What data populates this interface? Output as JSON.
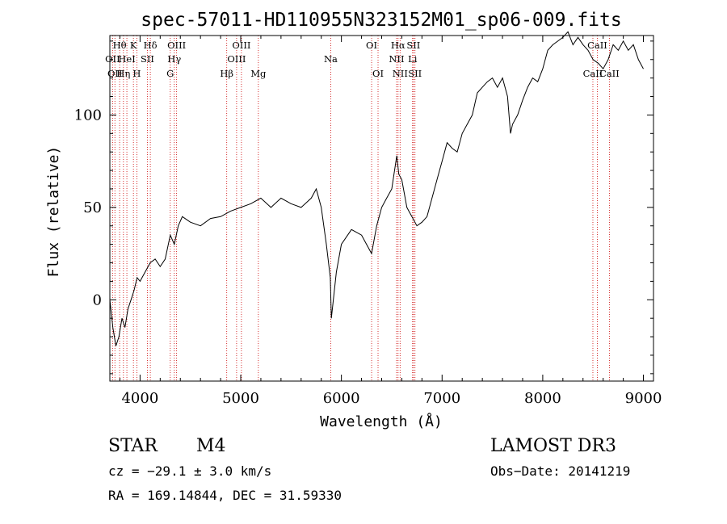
{
  "chart_data": {
    "type": "line",
    "title": "spec-57011-HD110955N323152M01_sp06-009.fits",
    "xlabel": "Wavelength (Å)",
    "ylabel": "Flux (relative)",
    "xlim": [
      3700,
      9100
    ],
    "ylim": [
      -44,
      143
    ],
    "xticks": [
      4000,
      5000,
      6000,
      7000,
      8000,
      9000
    ],
    "xtick_labels": [
      "4000",
      "5000",
      "6000",
      "7000",
      "8000",
      "9000"
    ],
    "yticks": [
      0,
      50,
      100
    ],
    "ytick_labels": [
      "0",
      "50",
      "100"
    ],
    "grid": false,
    "series": [
      {
        "name": "spectrum",
        "color": "#000000",
        "x": [
          3700,
          3730,
          3760,
          3790,
          3820,
          3850,
          3880,
          3910,
          3940,
          3970,
          4000,
          4050,
          4100,
          4150,
          4200,
          4250,
          4300,
          4340,
          4380,
          4420,
          4500,
          4600,
          4700,
          4800,
          4900,
          5000,
          5100,
          5200,
          5300,
          5400,
          5500,
          5600,
          5700,
          5750,
          5800,
          5850,
          5890,
          5900,
          5950,
          6000,
          6100,
          6200,
          6300,
          6350,
          6400,
          6450,
          6500,
          6550,
          6570,
          6600,
          6650,
          6700,
          6750,
          6800,
          6850,
          6900,
          6950,
          7000,
          7050,
          7100,
          7150,
          7200,
          7250,
          7300,
          7350,
          7400,
          7450,
          7500,
          7550,
          7600,
          7650,
          7680,
          7700,
          7750,
          7800,
          7850,
          7900,
          7950,
          8000,
          8050,
          8100,
          8150,
          8200,
          8250,
          8300,
          8350,
          8400,
          8450,
          8500,
          8550,
          8600,
          8650,
          8700,
          8750,
          8800,
          8850,
          8900,
          8950,
          9000
        ],
        "values": [
          0,
          -15,
          -25,
          -20,
          -10,
          -15,
          -5,
          0,
          5,
          12,
          10,
          15,
          20,
          22,
          18,
          22,
          35,
          30,
          40,
          45,
          42,
          40,
          44,
          45,
          48,
          50,
          52,
          55,
          50,
          55,
          52,
          50,
          55,
          60,
          50,
          30,
          12,
          -10,
          15,
          30,
          38,
          35,
          25,
          40,
          50,
          55,
          60,
          78,
          68,
          65,
          50,
          45,
          40,
          42,
          45,
          55,
          65,
          75,
          85,
          82,
          80,
          90,
          95,
          100,
          112,
          115,
          118,
          120,
          115,
          120,
          110,
          90,
          95,
          100,
          108,
          115,
          120,
          118,
          125,
          135,
          138,
          140,
          142,
          145,
          138,
          142,
          138,
          135,
          130,
          128,
          125,
          130,
          138,
          135,
          140,
          135,
          138,
          130,
          125
        ]
      }
    ],
    "line_markers": [
      {
        "wavelength": 3727,
        "label": "OII",
        "row": 2
      },
      {
        "wavelength": 3750,
        "label": "OII",
        "row": 3
      },
      {
        "wavelength": 3797,
        "label": "Hθ",
        "row": 1
      },
      {
        "wavelength": 3835,
        "label": "Hη",
        "row": 3
      },
      {
        "wavelength": 3869,
        "label": "HeI",
        "row": 2
      },
      {
        "wavelength": 3934,
        "label": "K",
        "row": 1
      },
      {
        "wavelength": 3968,
        "label": "H",
        "row": 3
      },
      {
        "wavelength": 4073,
        "label": "SII",
        "row": 2
      },
      {
        "wavelength": 4102,
        "label": "Hδ",
        "row": 1
      },
      {
        "wavelength": 4300,
        "label": "G",
        "row": 3
      },
      {
        "wavelength": 4340,
        "label": "Hγ",
        "row": 2
      },
      {
        "wavelength": 4363,
        "label": "OIII",
        "row": 1
      },
      {
        "wavelength": 4861,
        "label": "Hβ",
        "row": 3
      },
      {
        "wavelength": 4959,
        "label": "OIII",
        "row": 2
      },
      {
        "wavelength": 5007,
        "label": "OIII",
        "row": 1
      },
      {
        "wavelength": 5175,
        "label": "Mg",
        "row": 3
      },
      {
        "wavelength": 5894,
        "label": "Na",
        "row": 2
      },
      {
        "wavelength": 6300,
        "label": "OI",
        "row": 1
      },
      {
        "wavelength": 6364,
        "label": "OI",
        "row": 3
      },
      {
        "wavelength": 6548,
        "label": "NII",
        "row": 2
      },
      {
        "wavelength": 6563,
        "label": "Hα",
        "row": 1
      },
      {
        "wavelength": 6583,
        "label": "NII",
        "row": 3
      },
      {
        "wavelength": 6707,
        "label": "Li",
        "row": 2
      },
      {
        "wavelength": 6716,
        "label": "SII",
        "row": 1
      },
      {
        "wavelength": 6731,
        "label": "SII",
        "row": 3
      },
      {
        "wavelength": 8498,
        "label": "CaII",
        "row": 3
      },
      {
        "wavelength": 8542,
        "label": "CaII",
        "row": 1
      },
      {
        "wavelength": 8662,
        "label": "CaII",
        "row": 3
      }
    ],
    "line_marker_color": "#cc0000"
  },
  "info": {
    "object_type": "STAR",
    "spectral_class": "M4",
    "survey": "LAMOST DR3",
    "cz": "cz = −29.1 ± 3.0 km/s",
    "obs_date": "Obs−Date: 20141219",
    "radec": "RA = 169.14844, DEC =  31.59330"
  }
}
